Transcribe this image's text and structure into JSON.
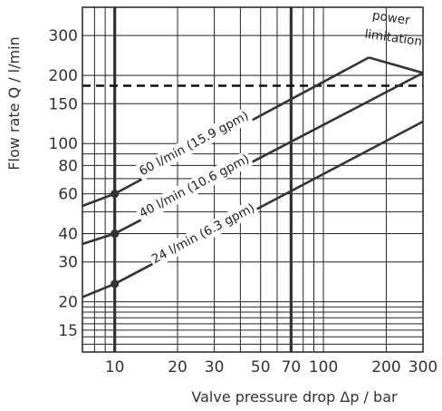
{
  "chart_data": {
    "type": "line",
    "title": "",
    "xlabel": "Valve pressure drop Δp / bar",
    "ylabel": "Flow rate Q / l/min",
    "x_scale": "log",
    "y_scale": "log",
    "xlim": [
      7,
      300
    ],
    "ylim": [
      12,
      400
    ],
    "x_ticks": [
      10,
      20,
      30,
      50,
      70,
      100,
      200,
      300
    ],
    "x_tick_labels": [
      "10",
      "20",
      "30",
      "50",
      "70",
      "100",
      "200",
      "300"
    ],
    "y_ticks": [
      15,
      20,
      30,
      40,
      60,
      80,
      100,
      150,
      200,
      300
    ],
    "y_tick_labels": [
      "15",
      "20",
      "30",
      "40",
      "60",
      "80",
      "100",
      "150",
      "200",
      "300"
    ],
    "x_gridlines": [
      7,
      8,
      9,
      10,
      20,
      30,
      40,
      50,
      60,
      70,
      80,
      90,
      100,
      200,
      300
    ],
    "y_gridlines": [
      12,
      13,
      14,
      15,
      16,
      17,
      18,
      19,
      20,
      30,
      40,
      50,
      60,
      70,
      80,
      90,
      100,
      150,
      200,
      300,
      400
    ],
    "grid": true,
    "series": [
      {
        "name": "60 l/min (15.9 gpm)",
        "x": [
          7,
          10,
          165
        ],
        "y": [
          53,
          60,
          240
        ]
      },
      {
        "name": "40 l/min (10.6 gpm)",
        "x": [
          7,
          10,
          300
        ],
        "y": [
          36,
          40,
          205
        ]
      },
      {
        "name": "24 l/min (6.3 gpm)",
        "x": [
          7,
          10,
          300
        ],
        "y": [
          21,
          24,
          125
        ]
      },
      {
        "name": "power limitation",
        "x": [
          165,
          300
        ],
        "y": [
          240,
          205
        ]
      }
    ],
    "reference_lines": [
      {
        "axis": "x",
        "value": 10,
        "style": "solid-thick"
      },
      {
        "axis": "x",
        "value": 70,
        "style": "solid-thick"
      },
      {
        "axis": "y",
        "value": 180,
        "style": "dashed"
      }
    ],
    "markers": [
      {
        "x": 10,
        "y": 60
      },
      {
        "x": 10,
        "y": 40
      },
      {
        "x": 10,
        "y": 24
      }
    ],
    "annotations": [
      {
        "text": "power",
        "x": 210,
        "y": 345
      },
      {
        "text": "limitation",
        "x": 215,
        "y": 282
      }
    ]
  }
}
